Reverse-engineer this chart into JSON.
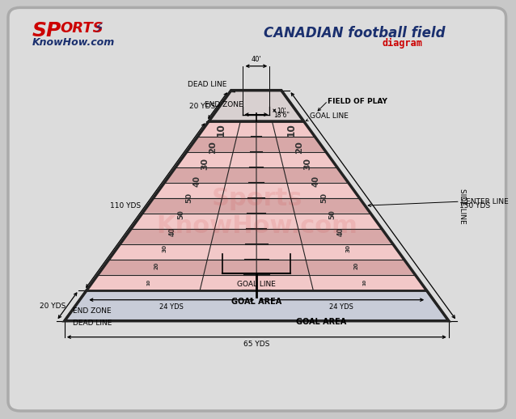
{
  "bg_outer": "#c8c8c8",
  "bg_inner": "#e0e0e0",
  "field_pink_light": "#f2c8c8",
  "field_pink_dark": "#d8a8a8",
  "field_gray": "#c8ccd8",
  "line_color": "#222222",
  "title_main": "CANADIAN football field",
  "title_sub": "diagram",
  "title_main_color": "#1a2f6e",
  "title_sub_color": "#cc0000",
  "labels": {
    "dead_line_top": "DEAD LINE",
    "end_zone_top": "END ZONE",
    "goal_line_top": "GOAL LINE",
    "field_of_play": "FIELD OF PLAY",
    "center_line": "CENTER LINE",
    "goal_line_bottom": "GOAL LINE",
    "goal_area_center": "GOAL AREA",
    "goal_area_right": "GOAL AREA",
    "end_zone_bottom": "END ZONE",
    "dead_line_bottom": "DEAD LINE",
    "side_line": "SIDE LINE",
    "dim_110": "110 YDS",
    "dim_150": "150 YDS",
    "dim_20_top": "20 YDS",
    "dim_20_bottom": "20 YDS",
    "dim_24_left": "24 YDS",
    "dim_24_right": "24 YDS",
    "dim_65": "65 YDS",
    "dim_40": "40'",
    "dim_10": "10'",
    "dim_186": "18'6\""
  },
  "yard_numbers": [
    "10",
    "20",
    "30",
    "40",
    "50",
    "50",
    "40",
    "30",
    "20",
    "10"
  ],
  "logo_sports": "SP",
  "logo_orts": "ORTS",
  "logo_kh": "KnowHow.com"
}
